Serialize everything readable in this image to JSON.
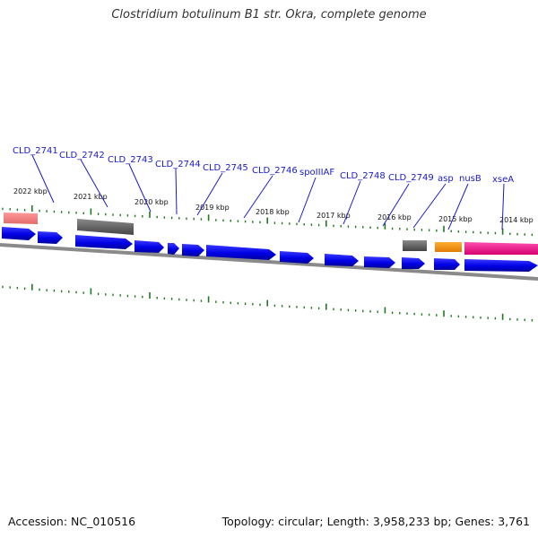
{
  "title": "Clostridium botulinum B1 str. Okra, complete genome",
  "footer": {
    "accession": "Accession: NC_010516",
    "summary": "Topology: circular; Length: 3,958,233 bp; Genes: 3,761"
  },
  "colors": {
    "gene_label": "#1a1acc",
    "cds_arrow": "#0000ee",
    "tick": "#1f7a1f",
    "backbone": "#8a8a8a"
  },
  "scale_labels": [
    "2022 kbp",
    "2021 kbp",
    "2020 kbp",
    "2019 kbp",
    "2018 kbp",
    "2017 kbp",
    "2016 kbp",
    "2015 kbp",
    "2014 kbp"
  ],
  "gene_labels": [
    "CLD_2741",
    "CLD_2742",
    "CLD_2743",
    "CLD_2744",
    "CLD_2745",
    "CLD_2746",
    "spoIIIAF",
    "CLD_2748",
    "CLD_2749",
    "asp",
    "nusB",
    "xseA"
  ],
  "feature_types": [
    "CDS",
    "gene (pink)",
    "gene (grey)",
    "gene (orange)",
    "gene (magenta)"
  ]
}
